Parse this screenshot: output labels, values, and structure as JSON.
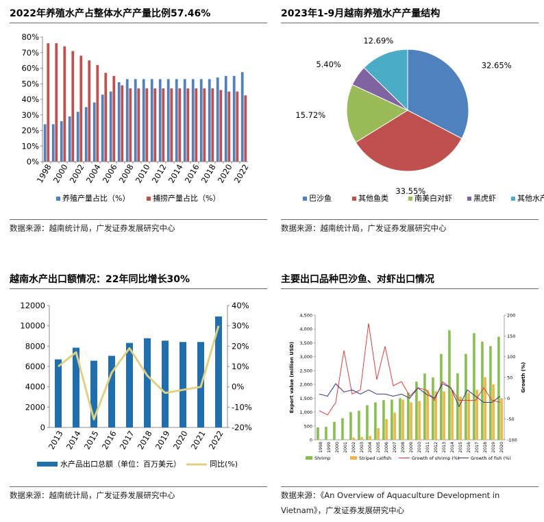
{
  "colors": {
    "aqua_share": "#4f81bd",
    "catch_share": "#c0504d",
    "pie_pangasius": "#4f81bd",
    "pie_other_fish": "#c0504d",
    "pie_whiteleg": "#9bbb59",
    "pie_tiger": "#8064a2",
    "pie_other": "#4bacc6",
    "export_bar": "#1f6fae",
    "export_line": "#e0d080",
    "shrimp_bar": "#86c04d",
    "catfish_bar": "#f0b544",
    "shrimp_growth": "#e23b3b",
    "fish_growth": "#35337d"
  },
  "chart_data": [
    {
      "type": "bar",
      "title": "2022年养殖水产占整体水产产量比例57.46%",
      "categories": [
        "1998",
        "1999",
        "2000",
        "2001",
        "2002",
        "2003",
        "2004",
        "2005",
        "2006",
        "2007",
        "2008",
        "2009",
        "2010",
        "2011",
        "2012",
        "2013",
        "2014",
        "2015",
        "2016",
        "2017",
        "2018",
        "2019",
        "2020",
        "2021",
        "2022"
      ],
      "x_tick_labels": [
        "1998",
        "2000",
        "2002",
        "2004",
        "2006",
        "2008",
        "2010",
        "2012",
        "2014",
        "2016",
        "2018",
        "2020",
        "2022"
      ],
      "y_tick_labels": [
        "0%",
        "10%",
        "20%",
        "30%",
        "40%",
        "50%",
        "60%",
        "70%",
        "80%"
      ],
      "ylim": [
        0,
        80
      ],
      "series": [
        {
          "name": "养殖产量占比（%）",
          "values": [
            24,
            24,
            26,
            29,
            32,
            35,
            38,
            43,
            45,
            51,
            53,
            53,
            53,
            53,
            53,
            53,
            53,
            53,
            53,
            53,
            53,
            54,
            55,
            55,
            57.46
          ]
        },
        {
          "name": "捕捞产量占比（%）",
          "values": [
            76,
            76,
            74,
            71,
            68,
            65,
            62,
            57,
            55,
            49,
            47,
            47,
            47,
            47,
            47,
            47,
            47,
            47,
            47,
            47,
            47,
            46,
            45,
            45,
            42.54
          ]
        }
      ],
      "legend_position": "bottom",
      "source": "数据来源：越南统计局，广发证券发展研究中心"
    },
    {
      "type": "pie",
      "title": "2023年1-9月越南养殖水产产量结构",
      "slices": [
        {
          "name": "巴沙鱼",
          "value": 32.65,
          "label": "32.65%"
        },
        {
          "name": "其他鱼类",
          "value": 33.55,
          "label": "33.55%"
        },
        {
          "name": "南美白对虾",
          "value": 15.72,
          "label": "15.72%"
        },
        {
          "name": "黑虎虾",
          "value": 5.4,
          "label": "5.40%"
        },
        {
          "name": "其他水产品",
          "value": 12.69,
          "label": "12.69%"
        }
      ],
      "legend_position": "bottom",
      "source": "数据来源：越南统计局，广发证券发展研究中心"
    },
    {
      "type": "bar",
      "title": "越南水产出口额情况：22年同比增长30%",
      "categories": [
        "2013",
        "2014",
        "2015",
        "2016",
        "2017",
        "2018",
        "2019",
        "2020",
        "2021",
        "2022"
      ],
      "y_tick_labels": [
        "0",
        "2000",
        "4000",
        "6000",
        "8000",
        "10000",
        "12000"
      ],
      "y2_tick_labels": [
        "-20%",
        "-10%",
        "0%",
        "10%",
        "20%",
        "30%",
        "40%"
      ],
      "ylim": [
        0,
        12000
      ],
      "y2lim": [
        -20,
        40
      ],
      "series": [
        {
          "name": "水产品出口总额（单位：百万美元）",
          "type": "bar",
          "values": [
            6700,
            7850,
            6570,
            7050,
            8320,
            8780,
            8540,
            8410,
            8410,
            10920
          ]
        },
        {
          "name": "同比(%)",
          "type": "line",
          "axis": "right",
          "values": [
            10,
            17,
            -16,
            7,
            19,
            5.5,
            -3,
            -1.5,
            0,
            30
          ]
        }
      ],
      "legend_position": "bottom",
      "source": "数据来源：越南统计局，广发证券发展研究中心"
    },
    {
      "type": "bar",
      "title": "主要出口品种巴沙鱼、对虾出口情况",
      "categories": [
        "1998",
        "1999",
        "2000",
        "2001",
        "2002",
        "2003",
        "2004",
        "2005",
        "2006",
        "2007",
        "2008",
        "2009",
        "2010",
        "2011",
        "2012",
        "2013",
        "2014",
        "2015",
        "2016",
        "2017",
        "2018",
        "2019",
        "2020"
      ],
      "y_tick_labels": [
        "0",
        "500",
        "1,000",
        "1,500",
        "2,000",
        "2,500",
        "3,000",
        "3,500",
        "4,000",
        "4,500"
      ],
      "y2_tick_labels": [
        "-100",
        "-50",
        "0",
        "50",
        "100",
        "150",
        "200"
      ],
      "ylim": [
        0,
        4500
      ],
      "y2lim": [
        -100,
        200
      ],
      "ylabel": "Export value (million USD)",
      "y2label": "Growth (%)",
      "series": [
        {
          "name": "Shrimp",
          "type": "bar",
          "values": [
            450,
            470,
            650,
            780,
            1000,
            1050,
            1250,
            1350,
            1430,
            1450,
            1500,
            1700,
            2100,
            2390,
            2250,
            3100,
            3950,
            2400,
            3100,
            3850,
            3540,
            3380,
            3720
          ]
        },
        {
          "name": "Striped catfish",
          "type": "bar",
          "values": [
            0,
            0,
            0,
            0,
            80,
            100,
            140,
            420,
            750,
            980,
            1450,
            1350,
            1400,
            1800,
            1750,
            1750,
            1760,
            1560,
            1700,
            1800,
            2260,
            2000,
            1500
          ]
        },
        {
          "name": "Growth of shrimp (%)",
          "type": "line",
          "axis": "right",
          "values": [
            -30,
            -40,
            -10,
            115,
            10,
            20,
            180,
            45,
            125,
            30,
            40,
            5,
            25,
            20,
            -5,
            40,
            25,
            -5,
            -5,
            -5,
            25,
            -5,
            -10
          ]
        },
        {
          "name": "Growth of fish (%)",
          "type": "line",
          "axis": "right",
          "values": [
            10,
            5,
            35,
            15,
            20,
            10,
            20,
            10,
            10,
            5,
            10,
            0,
            25,
            10,
            0,
            35,
            25,
            -20,
            20,
            5,
            -10,
            -10,
            5
          ]
        }
      ],
      "legend_position": "bottom",
      "source_lines": [
        "数据来源：《An Overview of Aquaculture Development in",
        "Vietnam》，广发证券发展研究中心"
      ]
    }
  ]
}
